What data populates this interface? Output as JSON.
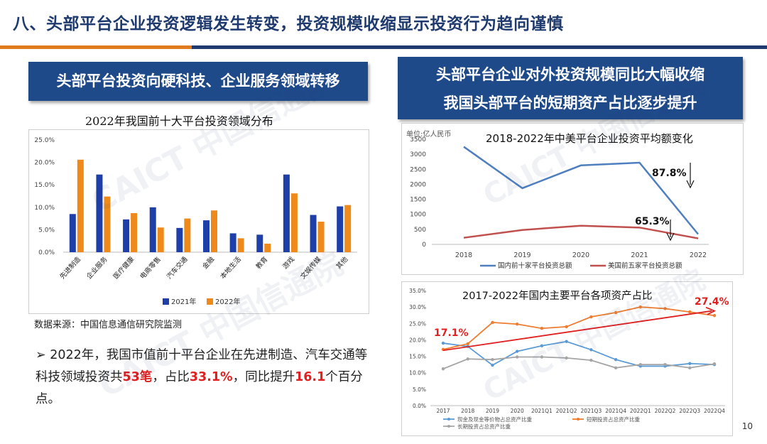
{
  "header": {
    "title": "八、头部平台企业投资逻辑发生转变，投资规模收缩显示投资行为趋向谨慎",
    "accent_color": "#1f3a6e",
    "highlight_color": "#e07b20"
  },
  "left_panel": {
    "banner": "头部平台投资向硬科技、企业服务领域转移",
    "source": "数据来源：中国信息通信研究院监测",
    "bullet": {
      "marker": "➢",
      "t1": "2022年，我国市值前十平台企业在先进制造、汽车交通等科技领域投资共",
      "h1": "53笔",
      "t2": "，占比",
      "h2": "33.1%",
      "t3": "，同比提升",
      "h3": "16.1",
      "t4": "个百分点。"
    }
  },
  "right_panel": {
    "banner_line1": "头部平台企业对外投资规模同比大幅收缩",
    "banner_line2": "我国头部平台的短期资产占比逐步提升"
  },
  "watermark": "CAICT 中国信通院",
  "page_number": "10",
  "chart_data": [
    {
      "type": "bar",
      "title": "2022年我国前十大平台投资领域分布",
      "categories": [
        "先进制造",
        "企业服务",
        "医疗健康",
        "电商零售",
        "汽车交通",
        "金融",
        "本地生活",
        "教育",
        "游戏",
        "文娱传媒",
        "其他"
      ],
      "series": [
        {
          "name": "2021年",
          "color": "#1f3fa8",
          "values": [
            8.5,
            17.3,
            7.3,
            10.0,
            5.4,
            7.1,
            4.2,
            3.9,
            17.3,
            8.3,
            10.2
          ]
        },
        {
          "name": "2022年",
          "color": "#ee8a1c",
          "values": [
            20.6,
            12.4,
            8.7,
            5.5,
            7.5,
            9.3,
            3.1,
            1.9,
            13.1,
            6.8,
            10.5
          ]
        }
      ],
      "yticks": [
        "0.0%",
        "5.0%",
        "10.0%",
        "15.0%",
        "20.0%",
        "25.0%"
      ],
      "ylim": [
        0,
        25
      ],
      "legend": "bottom"
    },
    {
      "type": "line",
      "title": "2018-2022年中美平台企业投资平均额变化",
      "unit": "单位:亿人民币",
      "categories": [
        "2018",
        "2019",
        "2020",
        "2021",
        "2022"
      ],
      "series": [
        {
          "name": "国内前十家平台投资总额",
          "color": "#4f7fbf",
          "values": [
            3250,
            1870,
            2630,
            2720,
            340
          ]
        },
        {
          "name": "美国前五家平台投资总额",
          "color": "#c0504d",
          "values": [
            220,
            480,
            620,
            560,
            200
          ]
        }
      ],
      "yticks": [
        "0",
        "500",
        "1000",
        "1500",
        "2000",
        "2500",
        "3000",
        "3500"
      ],
      "ylim": [
        0,
        3500
      ],
      "annotations": [
        "87.8%",
        "65.3%"
      ],
      "legend": "bottom"
    },
    {
      "type": "line",
      "title": "2017-2022年国内主要平台各项资产占比",
      "categories": [
        "2017",
        "2018",
        "2019",
        "2020",
        "2021Q1",
        "2021Q2",
        "2021Q3",
        "2021Q4",
        "2022Q1",
        "2022Q2",
        "2022Q3",
        "2022Q4"
      ],
      "series": [
        {
          "name": "现金及现金等价物占总资产比重",
          "color": "#5b9bd5",
          "values": [
            19.0,
            18.0,
            12.3,
            16.5,
            18.2,
            19.5,
            17.0,
            14.0,
            12.0,
            12.0,
            12.8,
            12.5
          ]
        },
        {
          "name": "短期投资占总资产比重",
          "color": "#ed7d31",
          "values": [
            17.1,
            18.8,
            25.3,
            24.8,
            23.5,
            24.0,
            27.0,
            28.3,
            30.0,
            29.5,
            28.5,
            27.4
          ]
        },
        {
          "name": "长期投资占总资产比重",
          "color": "#a5a5a5",
          "values": [
            11.2,
            14.2,
            14.0,
            14.8,
            14.8,
            14.5,
            13.8,
            11.5,
            12.5,
            12.5,
            11.5,
            12.7
          ]
        }
      ],
      "yticks": [
        "0.0%",
        "5.0%",
        "10.0%",
        "15.0%",
        "20.0%",
        "25.0%",
        "30.0%",
        "35.0%"
      ],
      "ylim": [
        0,
        35
      ],
      "annotations": [
        "17.1%",
        "27.4%"
      ],
      "legend": "bottom"
    }
  ]
}
